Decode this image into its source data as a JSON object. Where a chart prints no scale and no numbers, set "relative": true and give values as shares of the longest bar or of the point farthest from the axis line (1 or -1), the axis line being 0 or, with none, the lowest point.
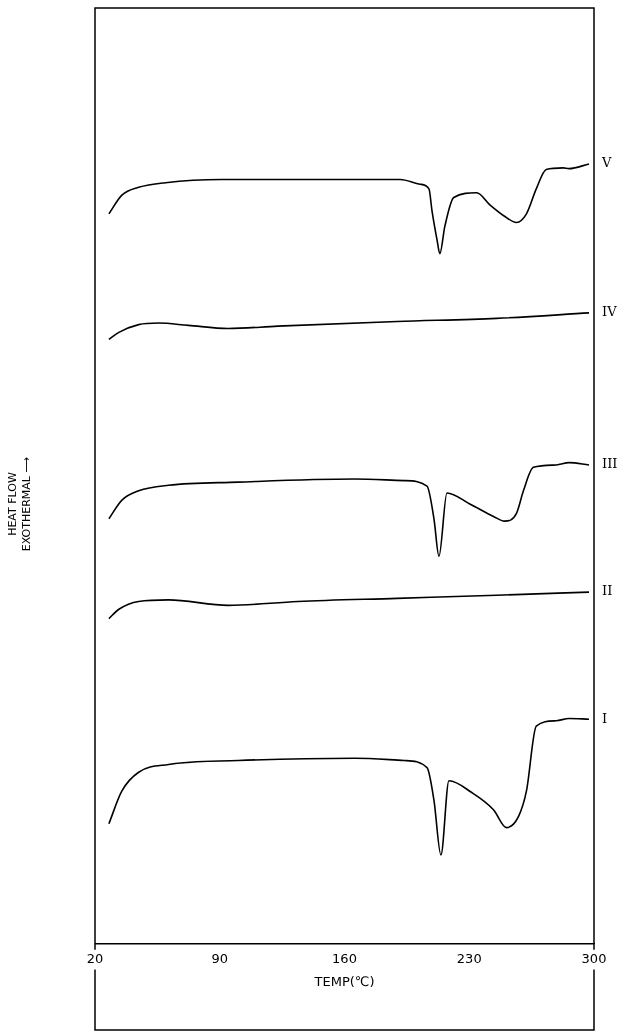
{
  "chart_data": {
    "type": "line",
    "relative": true,
    "xlabel": "TEMP(℃)",
    "ylabel": "HEAT FLOW\nEXOTHERMAL ⟶",
    "xlim": [
      20,
      300
    ],
    "xticks": [
      20,
      90,
      160,
      230,
      300
    ],
    "grid": false,
    "legend": false,
    "marker": "none",
    "line_style": "solid",
    "series": [
      {
        "name": "I",
        "color": "#000000",
        "x": [
          27.8,
          35.1,
          44.5,
          61.3,
          100.3,
          165.6,
          193.5,
          206.3,
          210.2,
          214.1,
          218.6,
          231.4,
          243.6,
          250.9,
          257.6,
          262.1,
          267.6,
          278.8,
          286,
          297.2
        ],
        "values": [
          0.154,
          0.196,
          0.22,
          0.23,
          0.235,
          0.238,
          0.235,
          0.226,
          0.184,
          0.114,
          0.209,
          0.194,
          0.172,
          0.149,
          0.163,
          0.196,
          0.279,
          0.286,
          0.289,
          0.288
        ]
      },
      {
        "name": "II",
        "color": "#000000",
        "x": [
          27.8,
          33.4,
          44.5,
          61.3,
          94.7,
          133.8,
          189.5,
          245.3,
          297.2
        ],
        "values": [
          0.417,
          0.429,
          0.439,
          0.441,
          0.434,
          0.439,
          0.443,
          0.447,
          0.451
        ]
      },
      {
        "name": "III",
        "color": "#000000",
        "x": [
          27.8,
          35.1,
          44.5,
          61.3,
          100.3,
          165.6,
          193.5,
          206.3,
          210.2,
          213,
          217.5,
          230.3,
          243.6,
          249.8,
          256.5,
          260.4,
          266,
          278.8,
          286,
          297.2
        ],
        "values": [
          0.545,
          0.569,
          0.581,
          0.588,
          0.592,
          0.596,
          0.594,
          0.587,
          0.545,
          0.497,
          0.578,
          0.564,
          0.548,
          0.542,
          0.552,
          0.581,
          0.611,
          0.614,
          0.617,
          0.614
        ]
      },
      {
        "name": "IV",
        "color": "#000000",
        "x": [
          27.8,
          33.4,
          44.5,
          55.7,
          72.4,
          94.7,
          122.6,
          189.5,
          245.3,
          297.2
        ],
        "values": [
          0.775,
          0.784,
          0.794,
          0.796,
          0.793,
          0.789,
          0.792,
          0.798,
          0.802,
          0.809
        ]
      },
      {
        "name": "V",
        "color": "#000000",
        "x": [
          27.8,
          35.1,
          44.5,
          59.6,
          90.8,
          146.6,
          191.2,
          202.4,
          207.4,
          209.1,
          211.9,
          213.5,
          216.3,
          221.3,
          234.2,
          241.4,
          249.8,
          256.5,
          262.1,
          267.6,
          273.2,
          282.7,
          286,
          297.2
        ],
        "values": [
          0.936,
          0.96,
          0.97,
          0.976,
          0.98,
          0.98,
          0.98,
          0.974,
          0.968,
          0.94,
          0.903,
          0.885,
          0.92,
          0.957,
          0.963,
          0.948,
          0.933,
          0.925,
          0.936,
          0.968,
          0.993,
          0.995,
          0.994,
          1
        ]
      }
    ]
  }
}
